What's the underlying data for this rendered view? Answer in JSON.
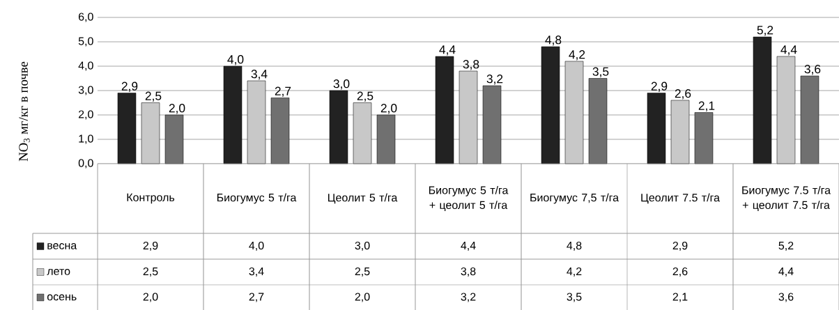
{
  "chart_data": {
    "type": "bar",
    "ylabel": "NO$_{3}$ мг/кг в почве",
    "categories": [
      "Контроль",
      "Биогумус 5 т/га",
      "Цеолит 5 т/га",
      "Биогумус 5 т/га + цеолит 5 т/га",
      "Биогумус 7,5 т/га",
      "Цеолит 7.5 т/га",
      "Биогумус 7.5 т/га + цеолит 7.5 т/га"
    ],
    "series": [
      {
        "name": "весна",
        "color": "#222222",
        "values": [
          2.9,
          4.0,
          3.0,
          4.4,
          4.8,
          2.9,
          5.2
        ],
        "value_labels": [
          "2,9",
          "4,0",
          "3,0",
          "4,4",
          "4,8",
          "2,9",
          "5,2"
        ]
      },
      {
        "name": "лето",
        "color": "#c8c8c8",
        "values": [
          2.5,
          3.4,
          2.5,
          3.8,
          4.2,
          2.6,
          4.4
        ],
        "value_labels": [
          "2,5",
          "3,4",
          "2,5",
          "3,8",
          "4,2",
          "2,6",
          "4,4"
        ]
      },
      {
        "name": "осень",
        "color": "#707070",
        "values": [
          2.0,
          2.7,
          2.0,
          3.2,
          3.5,
          2.1,
          3.6
        ],
        "value_labels": [
          "2,0",
          "2,7",
          "2,0",
          "3,2",
          "3,5",
          "2,1",
          "3,6"
        ]
      }
    ],
    "ylim": [
      0,
      6
    ],
    "yticks": [
      {
        "value": 0,
        "label": "0,0"
      },
      {
        "value": 1,
        "label": "1,0"
      },
      {
        "value": 2,
        "label": "2,0"
      },
      {
        "value": 3,
        "label": "3,0"
      },
      {
        "value": 4,
        "label": "4,0"
      },
      {
        "value": 5,
        "label": "5,0"
      },
      {
        "value": 6,
        "label": "6,0"
      }
    ],
    "grid": "y",
    "legend": "bottom left"
  }
}
